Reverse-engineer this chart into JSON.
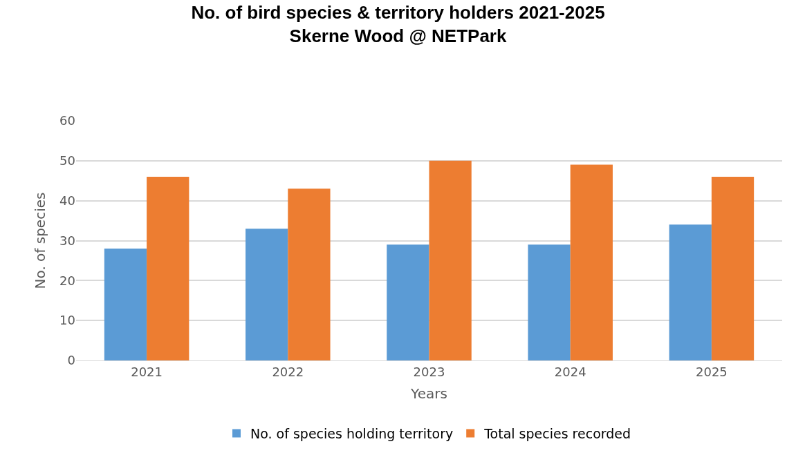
{
  "chart_data": {
    "type": "bar",
    "title": "No. of bird species & territory holders 2021-2025\nSkerne Wood @ NETPark",
    "xlabel": "Years",
    "ylabel": "No. of species",
    "categories": [
      "2021",
      "2022",
      "2023",
      "2024",
      "2025"
    ],
    "series": [
      {
        "name": "No. of species holding territory",
        "color": "#5b9bd5",
        "values": [
          28,
          33,
          29,
          29,
          34
        ]
      },
      {
        "name": "Total species recorded",
        "color": "#ed7d31",
        "values": [
          46,
          43,
          50,
          49,
          46
        ]
      }
    ],
    "ylim": [
      0,
      60
    ],
    "yticks": [
      0,
      10,
      20,
      30,
      40,
      50,
      60
    ],
    "grid": "y",
    "legend": "bottom"
  }
}
